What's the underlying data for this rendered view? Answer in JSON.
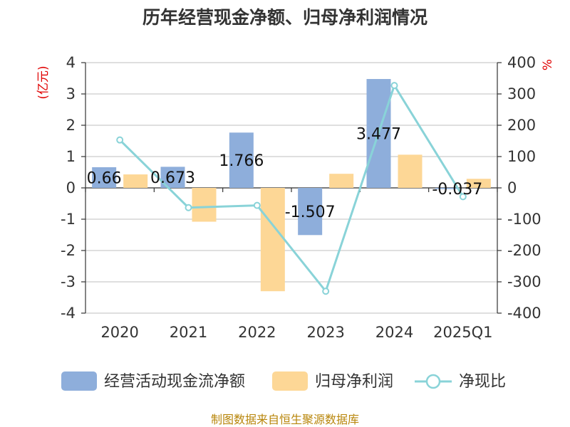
{
  "chart_data": {
    "type": "bar",
    "title": "历年经营现金净额、归母净利润情况",
    "categories": [
      "2020",
      "2021",
      "2022",
      "2023",
      "2024",
      "2025Q1"
    ],
    "left_unit": "(亿元)",
    "right_unit": "%",
    "ylim": [
      -4,
      4
    ],
    "y_ticks": [
      4,
      3,
      2,
      1,
      0,
      -1,
      -2,
      -3,
      -4
    ],
    "y2lim": [
      -400,
      400
    ],
    "y2_ticks": [
      400,
      300,
      200,
      100,
      0,
      -100,
      -200,
      -300,
      -400
    ],
    "series": [
      {
        "name": "经营活动现金流净额",
        "kind": "bar",
        "axis": "left",
        "color": "#8eaedb",
        "values": [
          0.66,
          0.673,
          1.766,
          -1.507,
          3.477,
          -0.037
        ],
        "labels": [
          "0.66",
          "0.673",
          "1.766",
          "-1.507",
          "3.477",
          "-0.037"
        ]
      },
      {
        "name": "归母净利润",
        "kind": "bar",
        "axis": "left",
        "color": "#fdd796",
        "values": [
          0.43,
          -1.08,
          -3.3,
          0.45,
          1.06,
          0.29
        ]
      },
      {
        "name": "净现比",
        "kind": "line",
        "axis": "right",
        "color": "#89d3d8",
        "values": [
          153,
          -63,
          -56,
          -330,
          327,
          -28
        ]
      }
    ],
    "legend_position": "bottom",
    "grid": true
  },
  "source_text": "制图数据来自恒生聚源数据库"
}
